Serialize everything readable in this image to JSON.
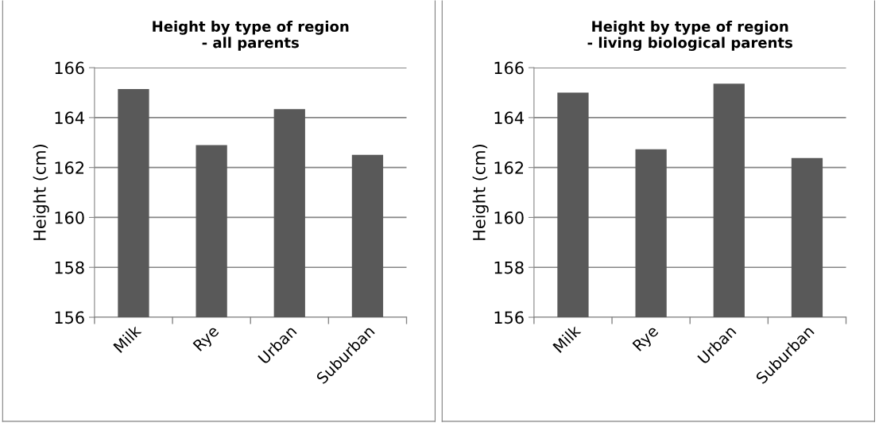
{
  "chart_data": [
    {
      "type": "bar",
      "title": "Height by type of region\n- all parents",
      "ylabel": "Height (cm)",
      "categories": [
        "Milk",
        "Rye",
        "Urban",
        "Suburban"
      ],
      "values": [
        165.14,
        162.9,
        164.34,
        162.51
      ],
      "color": "#595959",
      "ylim": [
        156,
        166
      ],
      "yticks": [
        156,
        158,
        160,
        162,
        164,
        166
      ],
      "grid": "y",
      "legend": false
    },
    {
      "type": "bar",
      "title": "Height by type of region\n- living biological parents",
      "ylabel": "Height (cm)",
      "categories": [
        "Milk",
        "Rye",
        "Urban",
        "Suburban"
      ],
      "values": [
        165.0,
        162.73,
        165.36,
        162.38
      ],
      "color": "#595959",
      "ylim": [
        156,
        166
      ],
      "yticks": [
        156,
        158,
        160,
        162,
        164,
        166
      ],
      "grid": "y",
      "legend": false
    }
  ]
}
